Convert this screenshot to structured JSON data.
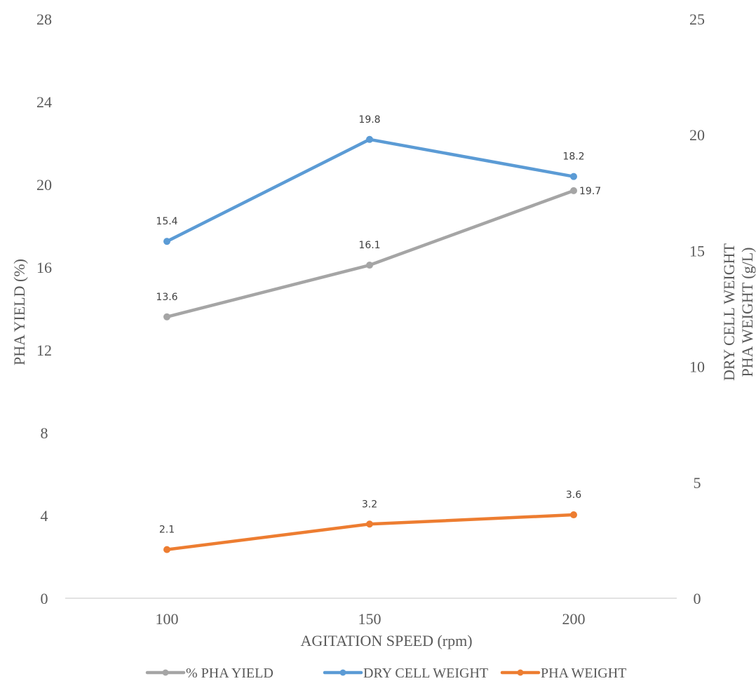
{
  "chart_data": {
    "type": "line",
    "x": [
      100,
      150,
      200
    ],
    "xlabel": "AGITATION SPEED (rpm)",
    "ylabel_left": "PHA YIELD (%)",
    "ylabel_right_lines": [
      "DRY CELL WEIGHT",
      "PHA WEIGHT (g/L)"
    ],
    "ylim_left": [
      0,
      28
    ],
    "ylim_right": [
      0,
      25
    ],
    "yticks_left": [
      0,
      4,
      8,
      12,
      16,
      20,
      24,
      28
    ],
    "yticks_right": [
      0,
      5,
      10,
      15,
      20,
      25
    ],
    "xticks": [
      100,
      150,
      200
    ],
    "grid": false,
    "legend_position": "bottom",
    "series": [
      {
        "name": "% PHA YIELD",
        "axis": "left",
        "color": "#a5a5a5",
        "values": [
          13.6,
          16.1,
          19.7
        ],
        "labels": [
          "13.6",
          "16.1",
          "19.7"
        ]
      },
      {
        "name": "DRY CELL WEIGHT",
        "axis": "right",
        "color": "#5b9bd5",
        "values": [
          15.4,
          19.8,
          18.2
        ],
        "labels": [
          "15.4",
          "19.8",
          "18.2"
        ]
      },
      {
        "name": "PHA WEIGHT",
        "axis": "right",
        "color": "#ed7d31",
        "values": [
          2.1,
          3.2,
          3.6
        ],
        "labels": [
          "2.1",
          "3.2",
          "3.6"
        ]
      }
    ]
  }
}
